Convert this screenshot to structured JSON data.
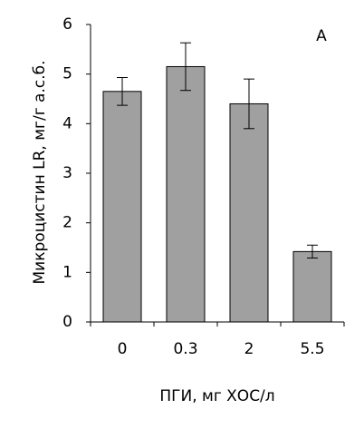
{
  "chart_data": {
    "type": "bar",
    "annotation": "A",
    "xlabel": "ПГИ, мг ХОС/л",
    "ylabel": "Микроцистин LR, мг/г а.с.б.",
    "categories": [
      "0",
      "0.3",
      "2",
      "5.5"
    ],
    "values": [
      4.65,
      5.15,
      4.4,
      1.42
    ],
    "errors": [
      0.28,
      0.48,
      0.5,
      0.13
    ],
    "color": "#a0a0a0",
    "ylim": [
      0,
      6
    ],
    "yticks": [
      0,
      1,
      2,
      3,
      4,
      5,
      6
    ],
    "grid": false
  }
}
